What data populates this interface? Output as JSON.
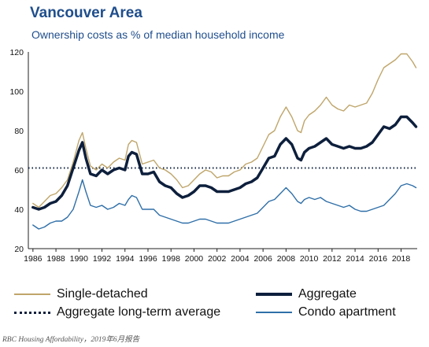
{
  "chart_data": {
    "type": "line",
    "title": "Vancouver Area",
    "subtitle": "Ownership costs as % of median household income",
    "xlabel": "",
    "ylabel": "",
    "xlim": [
      1985.6,
      2019.4
    ],
    "ylim": [
      20,
      120
    ],
    "y_ticks": [
      "20",
      "40",
      "60",
      "80",
      "100",
      "120"
    ],
    "x_ticks": [
      "1986",
      "1988",
      "1990",
      "1992",
      "1994",
      "1996",
      "1998",
      "2000",
      "2002",
      "2004",
      "2006",
      "2008",
      "2010",
      "2012",
      "2014",
      "2016",
      "2018"
    ],
    "grid": false,
    "legend_position": "bottom",
    "long_term_average": 61,
    "series": [
      {
        "name": "Single-detached",
        "color": "#bfa56a",
        "style": "solid",
        "points": [
          [
            1986,
            43
          ],
          [
            1986.5,
            41
          ],
          [
            1987,
            44
          ],
          [
            1987.5,
            47
          ],
          [
            1988,
            48
          ],
          [
            1988.5,
            51
          ],
          [
            1989,
            55
          ],
          [
            1989.5,
            64
          ],
          [
            1990,
            75
          ],
          [
            1990.3,
            79
          ],
          [
            1990.6,
            71
          ],
          [
            1991,
            62
          ],
          [
            1991.5,
            60
          ],
          [
            1992,
            63
          ],
          [
            1992.5,
            61
          ],
          [
            1993,
            64
          ],
          [
            1993.5,
            66
          ],
          [
            1994,
            65
          ],
          [
            1994.3,
            73
          ],
          [
            1994.6,
            75
          ],
          [
            1995,
            74
          ],
          [
            1995.5,
            63
          ],
          [
            1996,
            64
          ],
          [
            1996.5,
            65
          ],
          [
            1997,
            61
          ],
          [
            1997.5,
            60
          ],
          [
            1998,
            58
          ],
          [
            1998.5,
            55
          ],
          [
            1999,
            51
          ],
          [
            1999.5,
            52
          ],
          [
            2000,
            55
          ],
          [
            2000.5,
            58
          ],
          [
            2001,
            60
          ],
          [
            2001.5,
            59
          ],
          [
            2002,
            56
          ],
          [
            2002.5,
            57
          ],
          [
            2003,
            57
          ],
          [
            2003.5,
            59
          ],
          [
            2004,
            60
          ],
          [
            2004.5,
            63
          ],
          [
            2005,
            64
          ],
          [
            2005.5,
            66
          ],
          [
            2006,
            72
          ],
          [
            2006.5,
            78
          ],
          [
            2007,
            80
          ],
          [
            2007.5,
            87
          ],
          [
            2008,
            92
          ],
          [
            2008.5,
            87
          ],
          [
            2009,
            80
          ],
          [
            2009.3,
            79
          ],
          [
            2009.6,
            85
          ],
          [
            2010,
            88
          ],
          [
            2010.5,
            90
          ],
          [
            2011,
            93
          ],
          [
            2011.5,
            97
          ],
          [
            2012,
            93
          ],
          [
            2012.5,
            91
          ],
          [
            2013,
            90
          ],
          [
            2013.5,
            93
          ],
          [
            2014,
            92
          ],
          [
            2014.5,
            93
          ],
          [
            2015,
            94
          ],
          [
            2015.5,
            99
          ],
          [
            2016,
            106
          ],
          [
            2016.5,
            112
          ],
          [
            2017,
            114
          ],
          [
            2017.5,
            116
          ],
          [
            2018,
            119
          ],
          [
            2018.5,
            119
          ],
          [
            2019,
            115
          ],
          [
            2019.3,
            112
          ]
        ]
      },
      {
        "name": "Aggregate",
        "color": "#0d1f3c",
        "style": "solid",
        "points": [
          [
            1986,
            41
          ],
          [
            1986.5,
            40
          ],
          [
            1987,
            41
          ],
          [
            1987.5,
            43
          ],
          [
            1988,
            44
          ],
          [
            1988.5,
            47
          ],
          [
            1989,
            52
          ],
          [
            1989.5,
            61
          ],
          [
            1990,
            70
          ],
          [
            1990.3,
            74
          ],
          [
            1990.6,
            66
          ],
          [
            1991,
            58
          ],
          [
            1991.5,
            57
          ],
          [
            1992,
            60
          ],
          [
            1992.5,
            58
          ],
          [
            1993,
            60
          ],
          [
            1993.5,
            61
          ],
          [
            1994,
            60
          ],
          [
            1994.3,
            67
          ],
          [
            1994.6,
            69
          ],
          [
            1995,
            68
          ],
          [
            1995.5,
            58
          ],
          [
            1996,
            58
          ],
          [
            1996.5,
            59
          ],
          [
            1997,
            54
          ],
          [
            1997.5,
            52
          ],
          [
            1998,
            51
          ],
          [
            1998.5,
            48
          ],
          [
            1999,
            46
          ],
          [
            1999.5,
            47
          ],
          [
            2000,
            49
          ],
          [
            2000.5,
            52
          ],
          [
            2001,
            52
          ],
          [
            2001.5,
            51
          ],
          [
            2002,
            49
          ],
          [
            2002.5,
            49
          ],
          [
            2003,
            49
          ],
          [
            2003.5,
            50
          ],
          [
            2004,
            51
          ],
          [
            2004.5,
            53
          ],
          [
            2005,
            54
          ],
          [
            2005.5,
            56
          ],
          [
            2006,
            61
          ],
          [
            2006.5,
            66
          ],
          [
            2007,
            67
          ],
          [
            2007.5,
            73
          ],
          [
            2008,
            76
          ],
          [
            2008.5,
            73
          ],
          [
            2009,
            66
          ],
          [
            2009.3,
            65
          ],
          [
            2009.6,
            69
          ],
          [
            2010,
            71
          ],
          [
            2010.5,
            72
          ],
          [
            2011,
            74
          ],
          [
            2011.5,
            76
          ],
          [
            2012,
            73
          ],
          [
            2012.5,
            72
          ],
          [
            2013,
            71
          ],
          [
            2013.5,
            72
          ],
          [
            2014,
            71
          ],
          [
            2014.5,
            71
          ],
          [
            2015,
            72
          ],
          [
            2015.5,
            74
          ],
          [
            2016,
            78
          ],
          [
            2016.5,
            82
          ],
          [
            2017,
            81
          ],
          [
            2017.5,
            83
          ],
          [
            2018,
            87
          ],
          [
            2018.5,
            87
          ],
          [
            2019,
            84
          ],
          [
            2019.3,
            82
          ]
        ]
      },
      {
        "name": "Condo apartment",
        "color": "#2f6fa8",
        "style": "solid",
        "points": [
          [
            1986,
            32
          ],
          [
            1986.5,
            30
          ],
          [
            1987,
            31
          ],
          [
            1987.5,
            33
          ],
          [
            1988,
            34
          ],
          [
            1988.5,
            34
          ],
          [
            1989,
            36
          ],
          [
            1989.5,
            40
          ],
          [
            1990,
            49
          ],
          [
            1990.3,
            55
          ],
          [
            1990.6,
            49
          ],
          [
            1991,
            42
          ],
          [
            1991.5,
            41
          ],
          [
            1992,
            42
          ],
          [
            1992.5,
            40
          ],
          [
            1993,
            41
          ],
          [
            1993.5,
            43
          ],
          [
            1994,
            42
          ],
          [
            1994.3,
            45
          ],
          [
            1994.6,
            47
          ],
          [
            1995,
            46
          ],
          [
            1995.5,
            40
          ],
          [
            1996,
            40
          ],
          [
            1996.5,
            40
          ],
          [
            1997,
            37
          ],
          [
            1997.5,
            36
          ],
          [
            1998,
            35
          ],
          [
            1998.5,
            34
          ],
          [
            1999,
            33
          ],
          [
            1999.5,
            33
          ],
          [
            2000,
            34
          ],
          [
            2000.5,
            35
          ],
          [
            2001,
            35
          ],
          [
            2001.5,
            34
          ],
          [
            2002,
            33
          ],
          [
            2002.5,
            33
          ],
          [
            2003,
            33
          ],
          [
            2003.5,
            34
          ],
          [
            2004,
            35
          ],
          [
            2004.5,
            36
          ],
          [
            2005,
            37
          ],
          [
            2005.5,
            38
          ],
          [
            2006,
            41
          ],
          [
            2006.5,
            44
          ],
          [
            2007,
            45
          ],
          [
            2007.5,
            48
          ],
          [
            2008,
            51
          ],
          [
            2008.5,
            48
          ],
          [
            2009,
            44
          ],
          [
            2009.3,
            43
          ],
          [
            2009.6,
            45
          ],
          [
            2010,
            46
          ],
          [
            2010.5,
            45
          ],
          [
            2011,
            46
          ],
          [
            2011.5,
            44
          ],
          [
            2012,
            43
          ],
          [
            2012.5,
            42
          ],
          [
            2013,
            41
          ],
          [
            2013.5,
            42
          ],
          [
            2014,
            40
          ],
          [
            2014.5,
            39
          ],
          [
            2015,
            39
          ],
          [
            2015.5,
            40
          ],
          [
            2016,
            41
          ],
          [
            2016.5,
            42
          ],
          [
            2017,
            45
          ],
          [
            2017.5,
            48
          ],
          [
            2018,
            52
          ],
          [
            2018.5,
            53
          ],
          [
            2019,
            52
          ],
          [
            2019.3,
            51
          ]
        ]
      },
      {
        "name": "Aggregate long-term average",
        "color": "#0d1f3c",
        "style": "dotted",
        "points": [
          [
            1985.6,
            61
          ],
          [
            2019.4,
            61
          ]
        ]
      }
    ]
  },
  "source_note": "RBC Housing Affordability，2019年6月报告"
}
